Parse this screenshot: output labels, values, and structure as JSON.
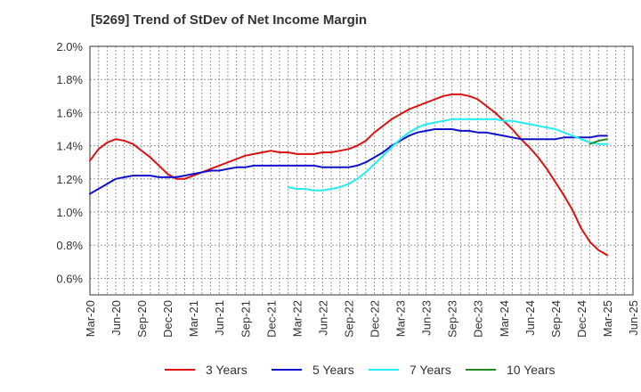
{
  "title": "[5269]  Trend of StDev of Net Income Margin",
  "chart_data": {
    "type": "line",
    "title": "[5269]  Trend of StDev of Net Income Margin",
    "xlabel": "",
    "ylabel": "",
    "x_ticks": [
      "Mar-20",
      "Jun-20",
      "Sep-20",
      "Dec-20",
      "Mar-21",
      "Jun-21",
      "Sep-21",
      "Dec-21",
      "Mar-22",
      "Jun-22",
      "Sep-22",
      "Dec-22",
      "Mar-23",
      "Jun-23",
      "Sep-23",
      "Dec-23",
      "Mar-24",
      "Jun-24",
      "Sep-24",
      "Dec-24",
      "Mar-25",
      "Jun-25"
    ],
    "y_ticks": [
      "0.6%",
      "0.8%",
      "1.0%",
      "1.2%",
      "1.4%",
      "1.6%",
      "1.8%",
      "2.0%"
    ],
    "ylim": [
      0.5,
      2.0
    ],
    "grid": true,
    "legend_position": "bottom",
    "series": [
      {
        "name": "3 Years",
        "color": "#dd1111",
        "x": [
          "2020-03",
          "2020-04",
          "2020-05",
          "2020-06",
          "2020-07",
          "2020-08",
          "2020-09",
          "2020-10",
          "2020-11",
          "2020-12",
          "2021-01",
          "2021-02",
          "2021-03",
          "2021-04",
          "2021-05",
          "2021-06",
          "2021-07",
          "2021-08",
          "2021-09",
          "2021-10",
          "2021-11",
          "2021-12",
          "2022-01",
          "2022-02",
          "2022-03",
          "2022-04",
          "2022-05",
          "2022-06",
          "2022-07",
          "2022-08",
          "2022-09",
          "2022-10",
          "2022-11",
          "2022-12",
          "2023-01",
          "2023-02",
          "2023-03",
          "2023-04",
          "2023-05",
          "2023-06",
          "2023-07",
          "2023-08",
          "2023-09",
          "2023-10",
          "2023-11",
          "2023-12",
          "2024-01",
          "2024-02",
          "2024-03",
          "2024-04",
          "2024-05",
          "2024-06",
          "2024-07",
          "2024-08",
          "2024-09",
          "2024-10",
          "2024-11",
          "2024-12",
          "2025-01",
          "2025-02",
          "2025-03"
        ],
        "values": [
          1.31,
          1.38,
          1.42,
          1.44,
          1.43,
          1.41,
          1.37,
          1.33,
          1.28,
          1.23,
          1.2,
          1.2,
          1.22,
          1.24,
          1.26,
          1.28,
          1.3,
          1.32,
          1.34,
          1.35,
          1.36,
          1.37,
          1.36,
          1.36,
          1.35,
          1.35,
          1.35,
          1.36,
          1.36,
          1.37,
          1.38,
          1.4,
          1.43,
          1.48,
          1.52,
          1.56,
          1.59,
          1.62,
          1.64,
          1.66,
          1.68,
          1.7,
          1.71,
          1.71,
          1.7,
          1.68,
          1.64,
          1.6,
          1.55,
          1.5,
          1.44,
          1.39,
          1.33,
          1.26,
          1.18,
          1.1,
          1.01,
          0.9,
          0.82,
          0.77,
          0.74
        ]
      },
      {
        "name": "5 Years",
        "color": "#1111cc",
        "x": [
          "2020-03",
          "2020-04",
          "2020-05",
          "2020-06",
          "2020-07",
          "2020-08",
          "2020-09",
          "2020-10",
          "2020-11",
          "2020-12",
          "2021-01",
          "2021-02",
          "2021-03",
          "2021-04",
          "2021-05",
          "2021-06",
          "2021-07",
          "2021-08",
          "2021-09",
          "2021-10",
          "2021-11",
          "2021-12",
          "2022-01",
          "2022-02",
          "2022-03",
          "2022-04",
          "2022-05",
          "2022-06",
          "2022-07",
          "2022-08",
          "2022-09",
          "2022-10",
          "2022-11",
          "2022-12",
          "2023-01",
          "2023-02",
          "2023-03",
          "2023-04",
          "2023-05",
          "2023-06",
          "2023-07",
          "2023-08",
          "2023-09",
          "2023-10",
          "2023-11",
          "2023-12",
          "2024-01",
          "2024-02",
          "2024-03",
          "2024-04",
          "2024-05",
          "2024-06",
          "2024-07",
          "2024-08",
          "2024-09",
          "2024-10",
          "2024-11",
          "2024-12",
          "2025-01",
          "2025-02",
          "2025-03"
        ],
        "values": [
          1.11,
          1.14,
          1.17,
          1.2,
          1.21,
          1.22,
          1.22,
          1.22,
          1.21,
          1.21,
          1.21,
          1.22,
          1.23,
          1.24,
          1.25,
          1.25,
          1.26,
          1.27,
          1.27,
          1.28,
          1.28,
          1.28,
          1.28,
          1.28,
          1.28,
          1.28,
          1.28,
          1.27,
          1.27,
          1.27,
          1.27,
          1.28,
          1.3,
          1.33,
          1.36,
          1.4,
          1.43,
          1.46,
          1.48,
          1.49,
          1.5,
          1.5,
          1.5,
          1.49,
          1.49,
          1.48,
          1.48,
          1.47,
          1.46,
          1.45,
          1.44,
          1.44,
          1.44,
          1.44,
          1.44,
          1.45,
          1.45,
          1.45,
          1.45,
          1.46,
          1.46
        ]
      },
      {
        "name": "7 Years",
        "color": "#22eeee",
        "x": [
          "2022-02",
          "2022-03",
          "2022-04",
          "2022-05",
          "2022-06",
          "2022-07",
          "2022-08",
          "2022-09",
          "2022-10",
          "2022-11",
          "2022-12",
          "2023-01",
          "2023-02",
          "2023-03",
          "2023-04",
          "2023-05",
          "2023-06",
          "2023-07",
          "2023-08",
          "2023-09",
          "2023-10",
          "2023-11",
          "2023-12",
          "2024-01",
          "2024-02",
          "2024-03",
          "2024-04",
          "2024-05",
          "2024-06",
          "2024-07",
          "2024-08",
          "2024-09",
          "2024-10",
          "2024-11",
          "2024-12",
          "2025-01",
          "2025-02",
          "2025-03"
        ],
        "values": [
          1.15,
          1.14,
          1.14,
          1.13,
          1.13,
          1.14,
          1.15,
          1.17,
          1.2,
          1.24,
          1.29,
          1.34,
          1.39,
          1.44,
          1.48,
          1.51,
          1.53,
          1.54,
          1.55,
          1.56,
          1.56,
          1.56,
          1.56,
          1.56,
          1.56,
          1.55,
          1.55,
          1.54,
          1.53,
          1.52,
          1.51,
          1.5,
          1.48,
          1.46,
          1.44,
          1.42,
          1.41,
          1.41
        ]
      },
      {
        "name": "10 Years",
        "color": "#228822",
        "x": [
          "2025-01",
          "2025-02",
          "2025-03"
        ],
        "values": [
          1.41,
          1.43,
          1.44
        ]
      }
    ]
  }
}
